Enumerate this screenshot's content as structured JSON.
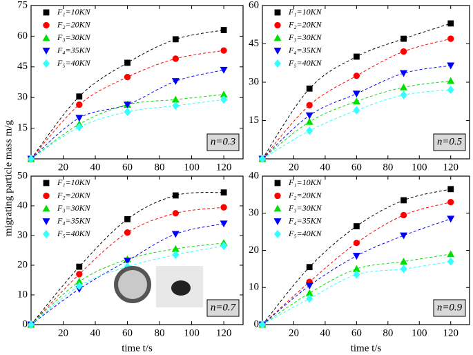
{
  "chart_data": [
    {
      "type": "scatter",
      "ylabel": "migrating particle mass m/g",
      "annotation": "n=0.3",
      "xlim": [
        0,
        132
      ],
      "xticks": [
        20,
        40,
        60,
        80,
        100,
        120
      ],
      "ylim": [
        0,
        75
      ],
      "yticks": [
        15,
        30,
        45,
        60,
        75
      ],
      "x": [
        0,
        30,
        60,
        90,
        120
      ],
      "series": [
        {
          "name": "F₁=10KN",
          "color": "#000000",
          "marker": "square",
          "values": [
            0,
            30.5,
            47,
            58.5,
            63
          ]
        },
        {
          "name": "F₂=20KN",
          "color": "#ff0000",
          "marker": "circle",
          "values": [
            0,
            26.5,
            40,
            49,
            53
          ]
        },
        {
          "name": "F₃=30KN",
          "color": "#00e000",
          "marker": "triangle-up",
          "values": [
            0,
            17,
            26.5,
            29,
            31.5
          ]
        },
        {
          "name": "F₄=35KN",
          "color": "#0000ff",
          "marker": "triangle-down",
          "values": [
            0,
            20,
            26.5,
            38,
            43.5
          ]
        },
        {
          "name": "F₅=40KN",
          "color": "#33ffff",
          "marker": "diamond",
          "values": [
            0,
            15.5,
            23,
            26,
            29
          ]
        }
      ]
    },
    {
      "type": "scatter",
      "annotation": "n=0.5",
      "xlim": [
        0,
        132
      ],
      "xticks": [
        20,
        40,
        60,
        80,
        100,
        120
      ],
      "ylim": [
        0,
        60
      ],
      "yticks": [
        15,
        30,
        45,
        60
      ],
      "x": [
        0,
        30,
        60,
        90,
        120
      ],
      "series": [
        {
          "name": "F₁=10KN",
          "color": "#000000",
          "marker": "square",
          "values": [
            0,
            27.5,
            40,
            47,
            53
          ]
        },
        {
          "name": "F₂=20KN",
          "color": "#ff0000",
          "marker": "circle",
          "values": [
            0,
            21,
            32.5,
            42,
            47
          ]
        },
        {
          "name": "F₃=30KN",
          "color": "#00e000",
          "marker": "triangle-up",
          "values": [
            0,
            14.5,
            22.5,
            28,
            30.5
          ]
        },
        {
          "name": "F₄=35KN",
          "color": "#0000ff",
          "marker": "triangle-down",
          "values": [
            0,
            17,
            25.5,
            33.5,
            36.5
          ]
        },
        {
          "name": "F₅=40KN",
          "color": "#33ffff",
          "marker": "diamond",
          "values": [
            0,
            11,
            19,
            25,
            27
          ]
        }
      ]
    },
    {
      "type": "scatter",
      "xlabel": "time t/s",
      "annotation": "n=0.7",
      "xlim": [
        0,
        132
      ],
      "xticks": [
        20,
        40,
        60,
        80,
        100,
        120
      ],
      "ylim": [
        0,
        50
      ],
      "yticks": [
        0,
        10,
        20,
        30,
        40,
        50
      ],
      "x": [
        0,
        30,
        60,
        90,
        120
      ],
      "series": [
        {
          "name": "F₁=10KN",
          "color": "#000000",
          "marker": "square",
          "values": [
            0,
            19.5,
            35.5,
            43.5,
            44.5
          ]
        },
        {
          "name": "F₂=20KN",
          "color": "#ff0000",
          "marker": "circle",
          "values": [
            0,
            17,
            31,
            37.5,
            39.5
          ]
        },
        {
          "name": "F₃=30KN",
          "color": "#00e000",
          "marker": "triangle-up",
          "values": [
            0,
            14.5,
            22,
            25.5,
            27.5
          ]
        },
        {
          "name": "F₄=35KN",
          "color": "#0000ff",
          "marker": "triangle-down",
          "values": [
            0,
            12,
            21.5,
            30.5,
            34
          ]
        },
        {
          "name": "F₅=40KN",
          "color": "#33ffff",
          "marker": "diamond",
          "values": [
            0,
            13,
            19.5,
            23.5,
            26.5
          ]
        }
      ]
    },
    {
      "type": "scatter",
      "xlabel": "time t/s",
      "annotation": "n=0.9",
      "xlim": [
        0,
        132
      ],
      "xticks": [
        20,
        40,
        60,
        80,
        100,
        120
      ],
      "ylim": [
        0,
        40
      ],
      "yticks": [
        0,
        10,
        20,
        30,
        40
      ],
      "x": [
        0,
        30,
        60,
        90,
        120
      ],
      "series": [
        {
          "name": "F₁=10KN",
          "color": "#000000",
          "marker": "square",
          "values": [
            0,
            15.5,
            26.5,
            33.5,
            36.5
          ]
        },
        {
          "name": "F₂=20KN",
          "color": "#ff0000",
          "marker": "circle",
          "values": [
            0,
            11.5,
            22,
            29.5,
            33
          ]
        },
        {
          "name": "F₃=30KN",
          "color": "#00e000",
          "marker": "triangle-up",
          "values": [
            0,
            8.5,
            15,
            17,
            19
          ]
        },
        {
          "name": "F₄=35KN",
          "color": "#0000ff",
          "marker": "triangle-down",
          "values": [
            0,
            10.5,
            18.5,
            24,
            28.5
          ]
        },
        {
          "name": "F₅=40KN",
          "color": "#33ffff",
          "marker": "diamond",
          "values": [
            0,
            7,
            13.5,
            15,
            17
          ]
        }
      ]
    }
  ]
}
